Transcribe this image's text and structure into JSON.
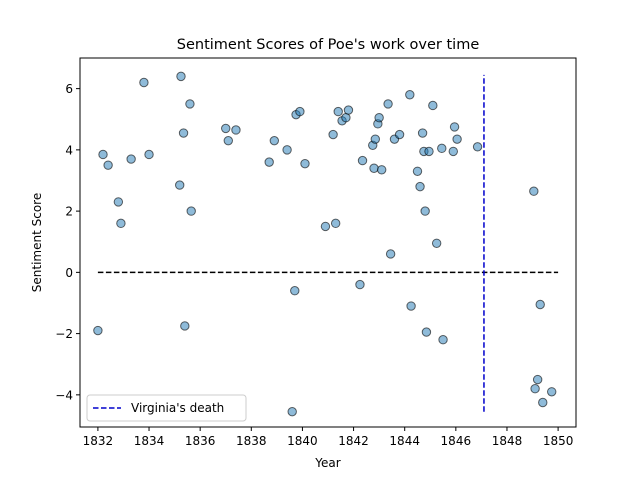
{
  "chart_data": {
    "type": "scatter",
    "title": "Sentiment Scores of Poe's work over time",
    "xlabel": "Year",
    "ylabel": "Sentiment Score",
    "xlim": [
      1831.3,
      1850.7
    ],
    "ylim": [
      -5.05,
      7.0
    ],
    "xticks": [
      1832,
      1834,
      1836,
      1838,
      1840,
      1842,
      1844,
      1846,
      1848,
      1850
    ],
    "yticks": [
      -4,
      -2,
      0,
      2,
      4,
      6
    ],
    "grid": false,
    "legend_position": "lower-left",
    "colors": {
      "point_fill": "#1f77b4",
      "point_edge": "#000000",
      "zero_line": "#000000",
      "event_line": "#0000cc"
    },
    "series": [
      {
        "points": [
          [
            1832.0,
            -1.9
          ],
          [
            1832.2,
            3.85
          ],
          [
            1832.4,
            3.5
          ],
          [
            1832.8,
            2.3
          ],
          [
            1832.9,
            1.6
          ],
          [
            1833.3,
            3.7
          ],
          [
            1833.8,
            6.2
          ],
          [
            1834.0,
            3.85
          ],
          [
            1835.2,
            2.85
          ],
          [
            1835.25,
            6.4
          ],
          [
            1835.35,
            4.55
          ],
          [
            1835.4,
            -1.75
          ],
          [
            1835.6,
            5.5
          ],
          [
            1835.65,
            2.0
          ],
          [
            1837.0,
            4.7
          ],
          [
            1837.1,
            4.3
          ],
          [
            1837.4,
            4.65
          ],
          [
            1838.7,
            3.6
          ],
          [
            1838.9,
            4.3
          ],
          [
            1839.4,
            4.0
          ],
          [
            1839.6,
            -4.55
          ],
          [
            1839.7,
            -0.6
          ],
          [
            1839.75,
            5.15
          ],
          [
            1839.9,
            5.25
          ],
          [
            1840.1,
            3.55
          ],
          [
            1840.9,
            1.5
          ],
          [
            1841.2,
            4.5
          ],
          [
            1841.3,
            1.6
          ],
          [
            1841.4,
            5.25
          ],
          [
            1841.55,
            4.95
          ],
          [
            1841.7,
            5.05
          ],
          [
            1841.8,
            5.3
          ],
          [
            1842.25,
            -0.4
          ],
          [
            1842.35,
            3.65
          ],
          [
            1842.75,
            4.15
          ],
          [
            1842.8,
            3.4
          ],
          [
            1842.85,
            4.35
          ],
          [
            1842.95,
            4.85
          ],
          [
            1843.0,
            5.05
          ],
          [
            1843.1,
            3.35
          ],
          [
            1843.35,
            5.5
          ],
          [
            1843.45,
            0.6
          ],
          [
            1843.6,
            4.35
          ],
          [
            1843.8,
            4.5
          ],
          [
            1844.2,
            5.8
          ],
          [
            1844.25,
            -1.1
          ],
          [
            1844.5,
            3.3
          ],
          [
            1844.6,
            2.8
          ],
          [
            1844.7,
            4.55
          ],
          [
            1844.75,
            3.95
          ],
          [
            1844.8,
            2.0
          ],
          [
            1844.85,
            -1.95
          ],
          [
            1844.95,
            3.95
          ],
          [
            1845.1,
            5.45
          ],
          [
            1845.25,
            0.95
          ],
          [
            1845.45,
            4.05
          ],
          [
            1845.5,
            -2.2
          ],
          [
            1845.9,
            3.95
          ],
          [
            1845.95,
            4.75
          ],
          [
            1846.05,
            4.35
          ],
          [
            1846.85,
            4.1
          ],
          [
            1849.05,
            2.65
          ],
          [
            1849.1,
            -3.8
          ],
          [
            1849.2,
            -3.5
          ],
          [
            1849.3,
            -1.05
          ],
          [
            1849.4,
            -4.25
          ],
          [
            1849.75,
            -3.9
          ]
        ]
      }
    ],
    "reference_lines": [
      {
        "orientation": "horizontal",
        "y": 0,
        "x_range": [
          1832,
          1850
        ],
        "style": "dashed",
        "color": "#000000"
      },
      {
        "orientation": "vertical",
        "x": 1847.1,
        "y_range": [
          -4.55,
          6.45
        ],
        "style": "dashed",
        "color": "#0000cc",
        "label": "Virginia's death"
      }
    ]
  }
}
